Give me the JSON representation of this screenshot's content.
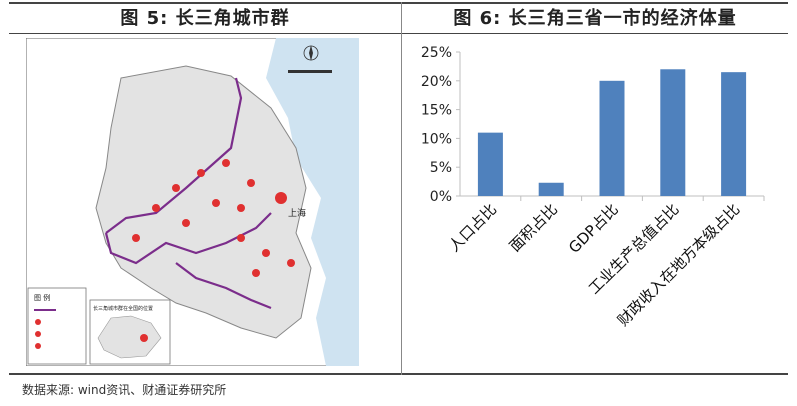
{
  "left_panel": {
    "title": "图 5:  长三角城市群"
  },
  "right_panel": {
    "title": "图 6: 长三角三省一市的经济体量"
  },
  "source": "数据来源: wind资讯、财通证券研究所",
  "map": {
    "city_label": "上海",
    "legend_title": "图    例",
    "inset_title": "长三角城市群在全国的位置",
    "colors": {
      "boundary": "#7b2d8b",
      "region_fill": "#e0e0e0",
      "sea": "#cfe3f1",
      "city": "#e03030"
    }
  },
  "chart_data": {
    "type": "bar",
    "categories": [
      "人口占比",
      "面积占比",
      "GDP占比",
      "工业生产总值占比",
      "财政收入在地方本级占比"
    ],
    "values": [
      0.11,
      0.023,
      0.2,
      0.22,
      0.215
    ],
    "ylim": [
      0,
      0.25
    ],
    "yticks": [
      "0%",
      "5%",
      "10%",
      "15%",
      "20%",
      "25%"
    ],
    "grid": false,
    "bar_color": "#4f81bd"
  }
}
